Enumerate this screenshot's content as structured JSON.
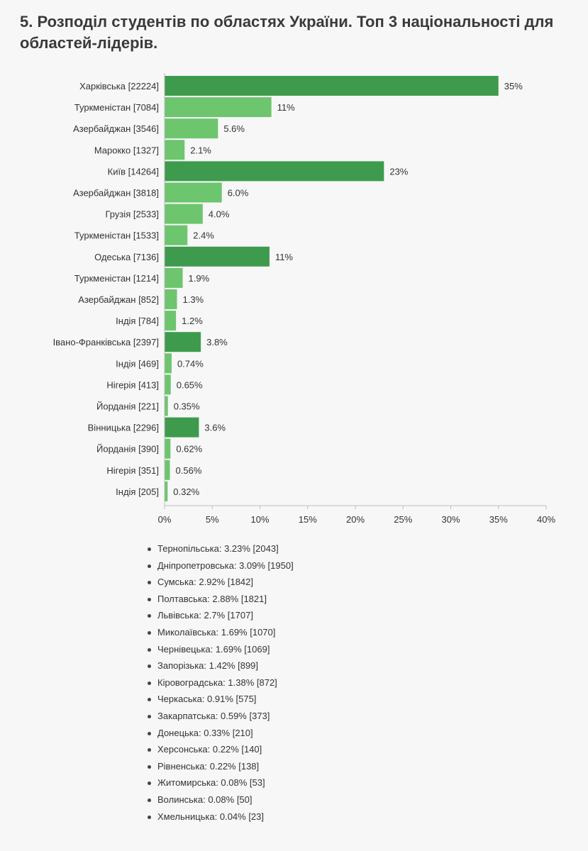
{
  "title": "5. Розподіл студентів по областях України. Топ 3 національності для областей-лідерів.",
  "colors": {
    "region": "#3e9b4d",
    "nationality": "#6dc56e",
    "axis": "#bdbdbd",
    "text": "#333333"
  },
  "chart_data": {
    "type": "bar",
    "orientation": "horizontal",
    "title": "",
    "xlabel": "",
    "ylabel": "",
    "xlim": [
      0,
      40
    ],
    "xticks": [
      "0%",
      "5%",
      "10%",
      "15%",
      "20%",
      "25%",
      "30%",
      "35%",
      "40%"
    ],
    "grid": false,
    "bars": [
      {
        "label": "Харківська [22224]",
        "value": 35,
        "value_label": "35%",
        "kind": "region"
      },
      {
        "label": "Туркменістан [7084]",
        "value": 11.2,
        "value_label": "11%",
        "kind": "nationality"
      },
      {
        "label": "Азербайджан [3546]",
        "value": 5.6,
        "value_label": "5.6%",
        "kind": "nationality"
      },
      {
        "label": "Марокко [1327]",
        "value": 2.1,
        "value_label": "2.1%",
        "kind": "nationality"
      },
      {
        "label": "Київ [14264]",
        "value": 23,
        "value_label": "23%",
        "kind": "region"
      },
      {
        "label": "Азербайджан [3818]",
        "value": 6.0,
        "value_label": "6.0%",
        "kind": "nationality"
      },
      {
        "label": "Грузія [2533]",
        "value": 4.0,
        "value_label": "4.0%",
        "kind": "nationality"
      },
      {
        "label": "Туркменістан [1533]",
        "value": 2.4,
        "value_label": "2.4%",
        "kind": "nationality"
      },
      {
        "label": "Одеська [7136]",
        "value": 11,
        "value_label": "11%",
        "kind": "region"
      },
      {
        "label": "Туркменістан [1214]",
        "value": 1.9,
        "value_label": "1.9%",
        "kind": "nationality"
      },
      {
        "label": "Азербайджан [852]",
        "value": 1.3,
        "value_label": "1.3%",
        "kind": "nationality"
      },
      {
        "label": "Індія [784]",
        "value": 1.2,
        "value_label": "1.2%",
        "kind": "nationality"
      },
      {
        "label": "Івано-Франківська [2397]",
        "value": 3.8,
        "value_label": "3.8%",
        "kind": "region"
      },
      {
        "label": "Індія [469]",
        "value": 0.74,
        "value_label": "0.74%",
        "kind": "nationality"
      },
      {
        "label": "Нігерія [413]",
        "value": 0.65,
        "value_label": "0.65%",
        "kind": "nationality"
      },
      {
        "label": "Йорданія [221]",
        "value": 0.35,
        "value_label": "0.35%",
        "kind": "nationality"
      },
      {
        "label": "Вінницька [2296]",
        "value": 3.6,
        "value_label": "3.6%",
        "kind": "region"
      },
      {
        "label": "Йорданія [390]",
        "value": 0.62,
        "value_label": "0.62%",
        "kind": "nationality"
      },
      {
        "label": "Нігерія [351]",
        "value": 0.56,
        "value_label": "0.56%",
        "kind": "nationality"
      },
      {
        "label": "Індія [205]",
        "value": 0.32,
        "value_label": "0.32%",
        "kind": "nationality"
      }
    ]
  },
  "other_regions": [
    "Тернопільська: 3.23% [2043]",
    "Дніпропетровська: 3.09% [1950]",
    "Сумська: 2.92% [1842]",
    "Полтавська: 2.88% [1821]",
    "Львівська: 2.7% [1707]",
    "Миколаївська: 1.69% [1070]",
    "Чернівецька: 1.69% [1069]",
    "Запорізька: 1.42% [899]",
    "Кіровоградська: 1.38% [872]",
    "Черкаська: 0.91% [575]",
    "Закарпатська: 0.59% [373]",
    "Донецька: 0.33% [210]",
    "Херсонська: 0.22% [140]",
    "Рівненська: 0.22% [138]",
    "Житомирська: 0.08% [53]",
    "Волинська: 0.08% [50]",
    "Хмельницька: 0.04% [23]"
  ]
}
